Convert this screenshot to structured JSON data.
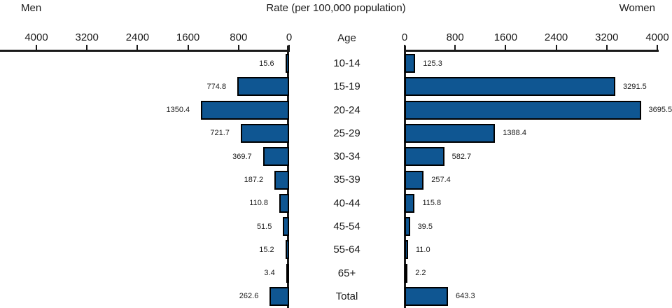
{
  "chart_data": {
    "type": "bar",
    "variant": "population-pyramid",
    "title": "Rate (per 100,000 population)",
    "center_label": "Age",
    "categories": [
      "10-14",
      "15-19",
      "20-24",
      "25-29",
      "30-34",
      "35-39",
      "40-44",
      "45-54",
      "55-64",
      "65+",
      "Total"
    ],
    "series": [
      {
        "name": "Men",
        "side": "left",
        "values": [
          15.6,
          774.8,
          1350.4,
          721.7,
          369.7,
          187.2,
          110.8,
          51.5,
          15.2,
          3.4,
          262.6
        ]
      },
      {
        "name": "Women",
        "side": "right",
        "values": [
          125.3,
          3291.5,
          3695.5,
          1388.4,
          582.7,
          257.4,
          115.8,
          39.5,
          11.0,
          2.2,
          643.3
        ]
      }
    ],
    "axis_ticks": [
      0,
      800,
      1600,
      2400,
      3200,
      4000
    ],
    "xlim": [
      0,
      4000
    ],
    "value_labels_shown": true,
    "grid": false,
    "legend_position": "none",
    "bar_color": "#0F5692",
    "bar_border_color": "#000000",
    "axis_color": "#1A1A1A",
    "text_color": "#1A1A1A"
  }
}
